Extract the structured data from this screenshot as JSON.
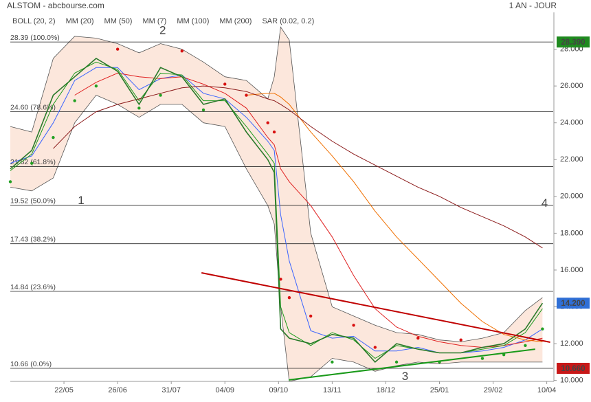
{
  "chart_data": {
    "type": "line",
    "title": "ALSTOM - abcbourse.com",
    "period": "1 AN - JOUR",
    "x": [
      0,
      10,
      20,
      30,
      40,
      50,
      60,
      70,
      80,
      90,
      100,
      110,
      120,
      123,
      126,
      130,
      140,
      150,
      160,
      170,
      180,
      190,
      200,
      210,
      220,
      230,
      240,
      248
    ],
    "xlim": [
      0,
      253
    ],
    "xticks": [
      {
        "value": 25,
        "label": "22/05"
      },
      {
        "value": 50,
        "label": "26/06"
      },
      {
        "value": 75,
        "label": "31/07"
      },
      {
        "value": 100,
        "label": "04/09"
      },
      {
        "value": 125,
        "label": "09/10"
      },
      {
        "value": 150,
        "label": "13/11"
      },
      {
        "value": 175,
        "label": "18/12"
      },
      {
        "value": 200,
        "label": "25/01"
      },
      {
        "value": 225,
        "label": "29/02"
      },
      {
        "value": 250,
        "label": "10/04"
      }
    ],
    "ylim": [
      9.95,
      30
    ],
    "yticks": [
      {
        "value": 10,
        "label": "10.000"
      },
      {
        "value": 12,
        "label": "12.000"
      },
      {
        "value": 14,
        "label": "14.000"
      },
      {
        "value": 16,
        "label": "16.000"
      },
      {
        "value": 18,
        "label": "18.000"
      },
      {
        "value": 20,
        "label": "20.000"
      },
      {
        "value": 22,
        "label": "22.000"
      },
      {
        "value": 24,
        "label": "24.000"
      },
      {
        "value": 26,
        "label": "26.000"
      },
      {
        "value": 28,
        "label": "28.000"
      }
    ],
    "price": {
      "color": "#2a7a2a",
      "values": [
        21.5,
        22.5,
        25.5,
        26.5,
        27.5,
        26.8,
        25.0,
        27.0,
        26.5,
        25.0,
        25.3,
        23.5,
        22.0,
        21.3,
        12.8,
        12.3,
        12.0,
        12.5,
        12.3,
        11.0,
        12.0,
        11.7,
        11.5,
        11.5,
        11.8,
        12.0,
        12.8,
        14.2
      ]
    },
    "bands": {
      "name": "BOLL (20, 2)",
      "color": "#555555",
      "fill": "#fbe3d6",
      "upper": [
        23.8,
        23.5,
        27.5,
        28.7,
        28.6,
        28.3,
        27.8,
        28.3,
        28.0,
        27.3,
        26.5,
        26.3,
        25.3,
        26.5,
        29.2,
        28.5,
        18.0,
        14.0,
        13.5,
        13.0,
        12.6,
        12.5,
        12.2,
        12.1,
        12.3,
        12.6,
        13.8,
        14.5
      ],
      "lower": [
        20.5,
        20.3,
        21.0,
        24.0,
        25.5,
        25.0,
        24.3,
        25.0,
        25.0,
        24.0,
        23.8,
        21.5,
        19.5,
        18.5,
        14.0,
        9.95,
        10.2,
        11.2,
        11.0,
        10.5,
        10.8,
        11.0,
        10.9,
        11.0,
        11.0,
        11.0,
        11.0,
        11.0
      ]
    },
    "series": [
      {
        "name": "MM (20)",
        "color": "#3a64ff",
        "values": [
          21.8,
          22.2,
          24.0,
          26.3,
          27.0,
          27.0,
          25.8,
          26.4,
          26.6,
          25.6,
          25.3,
          24.3,
          23.0,
          22.5,
          19.0,
          16.5,
          12.7,
          12.3,
          12.4,
          11.6,
          11.6,
          11.8,
          11.5,
          11.5,
          11.6,
          11.8,
          12.2,
          12.8
        ]
      },
      {
        "name": "MM (50)",
        "color": "#e02020",
        "values": [
          null,
          null,
          null,
          25.5,
          26.2,
          26.7,
          26.5,
          26.4,
          26.5,
          26.1,
          25.6,
          24.8,
          23.2,
          22.8,
          21.5,
          20.8,
          19.5,
          17.8,
          15.7,
          13.9,
          12.9,
          12.4,
          12.1,
          11.9,
          11.8,
          11.9,
          12.1,
          12.3
        ]
      },
      {
        "name": "MM (7)",
        "color": "#1a9a1a",
        "values": [
          21.4,
          22.3,
          25.0,
          26.7,
          27.3,
          26.9,
          25.2,
          26.7,
          26.6,
          25.2,
          25.2,
          23.8,
          22.3,
          21.8,
          14.0,
          12.6,
          11.9,
          12.6,
          12.2,
          11.2,
          11.9,
          11.7,
          11.5,
          11.5,
          11.7,
          11.9,
          12.6,
          13.9
        ]
      },
      {
        "name": "MM (100)",
        "color": "#f07000",
        "values": [
          null,
          null,
          null,
          null,
          null,
          null,
          null,
          null,
          null,
          null,
          null,
          25.5,
          25.6,
          25.6,
          25.4,
          25.0,
          23.5,
          22.2,
          20.8,
          19.2,
          17.8,
          16.6,
          15.4,
          14.2,
          13.2,
          12.5,
          12.2,
          12.1
        ]
      },
      {
        "name": "MM (200)",
        "color": "#8b1a1a",
        "values": [
          null,
          null,
          22.6,
          23.8,
          24.6,
          25.0,
          25.3,
          25.6,
          25.9,
          26.0,
          25.9,
          25.7,
          25.3,
          25.2,
          25.0,
          24.7,
          23.8,
          23.0,
          22.3,
          21.7,
          21.1,
          20.5,
          20.0,
          19.4,
          18.9,
          18.4,
          17.8,
          17.2
        ]
      }
    ],
    "sar": {
      "name": "SAR (0.02, 0.2)",
      "color_above": "#d81010",
      "color_below": "#22a022",
      "values": [
        20.8,
        21.8,
        23.2,
        25.2,
        26.0,
        28.0,
        24.8,
        25.5,
        27.9,
        24.7,
        26.1,
        25.5,
        24.0,
        23.5,
        15.5,
        14.5,
        13.5,
        11.0,
        13.0,
        11.8,
        11.0,
        12.3,
        11.0,
        12.2,
        11.2,
        11.4,
        11.9,
        12.8
      ]
    },
    "fib_levels": [
      {
        "value": 28.39,
        "label": "28.39 (100.0%)"
      },
      {
        "value": 24.6,
        "label": "24.60 (78.6%)"
      },
      {
        "value": 21.62,
        "label": "21.62 (61.8%)"
      },
      {
        "value": 19.52,
        "label": "19.52 (50.0%)"
      },
      {
        "value": 17.43,
        "label": "17.43 (38.2%)"
      },
      {
        "value": 14.84,
        "label": "14.84 (23.6%)"
      },
      {
        "value": 10.66,
        "label": "10.66 (0.0%)"
      }
    ],
    "trend_lines": [
      {
        "color": "#c00000",
        "x": [
          89.1,
          251.6
        ],
        "values": [
          15.85,
          12.08
        ]
      },
      {
        "color": "#1a9a1a",
        "x": [
          129.8,
          244.6
        ],
        "values": [
          10.03,
          11.7
        ]
      }
    ],
    "annotations": [
      {
        "text": "1",
        "x": 33,
        "y": 19.75
      },
      {
        "text": "2",
        "x": 71,
        "y": 29.0
      },
      {
        "text": "3",
        "x": 184,
        "y": 10.2
      },
      {
        "text": "4",
        "x": 249,
        "y": 19.6
      }
    ],
    "price_tags": [
      {
        "value": 28.39,
        "label": "28.390",
        "color": "#1f8a1f"
      },
      {
        "value": 14.2,
        "label": "14.200",
        "color": "#2f6fd6"
      },
      {
        "value": 10.66,
        "label": "10.660",
        "color": "#c81818"
      }
    ]
  }
}
